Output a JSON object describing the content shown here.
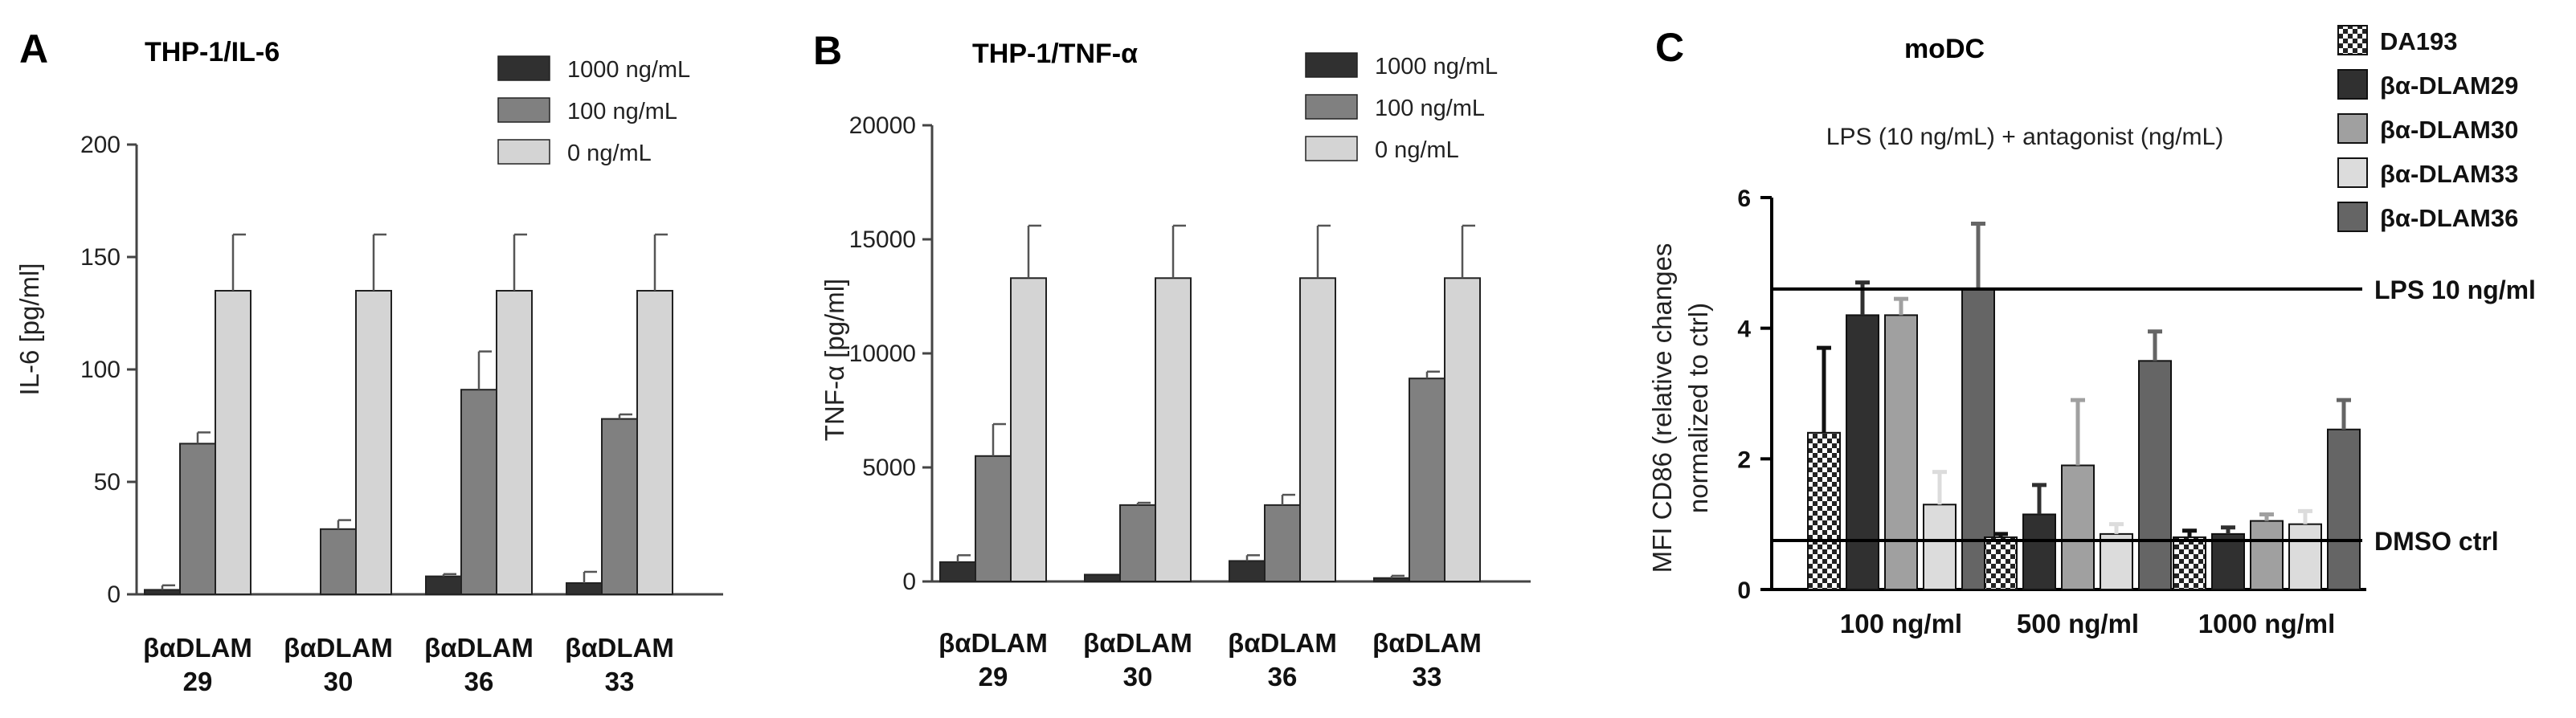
{
  "chart_data": [
    {
      "panel": "A",
      "type": "bar",
      "title": "THP-1/IL-6",
      "ylabel": "IL-6 [pg/ml]",
      "ylim": [
        0,
        200
      ],
      "yticks": [
        0,
        50,
        100,
        150,
        200
      ],
      "categories": [
        [
          "βαDLAM",
          "29"
        ],
        [
          "βαDLAM",
          "30"
        ],
        [
          "βαDLAM",
          "36"
        ],
        [
          "βαDLAM",
          "33"
        ]
      ],
      "series": [
        {
          "name": "1000 ng/mL",
          "color": "#303030",
          "values": [
            2,
            0,
            8,
            5
          ],
          "errors": [
            2,
            0,
            1,
            5
          ]
        },
        {
          "name": "100 ng/mL",
          "color": "#808080",
          "values": [
            67,
            29,
            91,
            78
          ],
          "errors": [
            5,
            4,
            17,
            2
          ]
        },
        {
          "name": "0 ng/mL",
          "color": "#d4d4d4",
          "values": [
            135,
            135,
            135,
            135
          ],
          "errors": [
            25,
            25,
            25,
            25
          ]
        }
      ]
    },
    {
      "panel": "B",
      "type": "bar",
      "title": "THP-1/TNF-α",
      "ylabel": "TNF-α [pg/ml]",
      "ylim": [
        0,
        20000
      ],
      "yticks": [
        0,
        5000,
        10000,
        15000,
        20000
      ],
      "categories": [
        [
          "βαDLAM",
          "29"
        ],
        [
          "βαDLAM",
          "30"
        ],
        [
          "βαDLAM",
          "36"
        ],
        [
          "βαDLAM",
          "33"
        ]
      ],
      "series": [
        {
          "name": "1000 ng/mL",
          "color": "#303030",
          "values": [
            850,
            300,
            900,
            150
          ],
          "errors": [
            300,
            0,
            250,
            100
          ]
        },
        {
          "name": "100 ng/mL",
          "color": "#808080",
          "values": [
            5500,
            3350,
            3350,
            8900
          ],
          "errors": [
            1400,
            100,
            450,
            300
          ]
        },
        {
          "name": "0 ng/mL",
          "color": "#d4d4d4",
          "values": [
            13300,
            13300,
            13300,
            13300
          ],
          "errors": [
            2300,
            2300,
            2300,
            2300
          ]
        }
      ]
    },
    {
      "panel": "C",
      "type": "bar",
      "title": "moDC",
      "subtitle": "LPS (10 ng/mL) + antagonist (ng/mL)",
      "ylabel_lines": [
        "MFI CD86 (relative changes",
        "normalized to ctrl)"
      ],
      "ylim": [
        0,
        6
      ],
      "yticks": [
        0,
        2,
        4,
        6
      ],
      "categories": [
        "100 ng/ml",
        "500 ng/ml",
        "1000 ng/ml"
      ],
      "series": [
        {
          "name": "DA193",
          "color": "#2a2a2a",
          "pattern": "checker",
          "values": [
            2.4,
            0.8,
            0.8
          ],
          "errors": [
            1.3,
            0.05,
            0.1
          ]
        },
        {
          "name": "βα-DLAM29",
          "color": "#303030",
          "values": [
            4.2,
            1.15,
            0.85
          ],
          "errors": [
            0.5,
            0.45,
            0.1
          ]
        },
        {
          "name": "βα-DLAM30",
          "color": "#a0a0a0",
          "values": [
            4.2,
            1.9,
            1.05
          ],
          "errors": [
            0.25,
            1.0,
            0.1
          ]
        },
        {
          "name": "βα-DLAM33",
          "color": "#dcdcdc",
          "values": [
            1.3,
            0.85,
            1.0
          ],
          "errors": [
            0.5,
            0.15,
            0.2
          ]
        },
        {
          "name": "βα-DLAM36",
          "color": "#656565",
          "values": [
            4.6,
            3.5,
            2.45
          ],
          "errors": [
            1.0,
            0.45,
            0.45
          ]
        }
      ],
      "reference_lines": [
        {
          "label": "LPS 10 ng/ml",
          "value": 4.6
        },
        {
          "label": "DMSO ctrl",
          "value": 0.75
        }
      ]
    }
  ]
}
